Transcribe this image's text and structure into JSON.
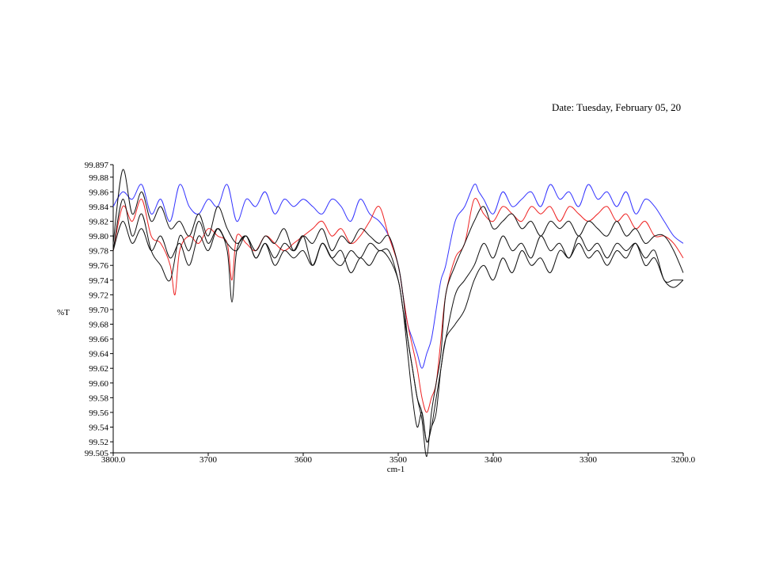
{
  "header": {
    "date_text": "Date: Tuesday, February 05, 20"
  },
  "chart_data": {
    "type": "line",
    "xlabel": "cm-1",
    "ylabel": "%T",
    "xlim": [
      3800.0,
      3200.0
    ],
    "ylim": [
      99.505,
      99.897
    ],
    "x_ticks": [
      3800.0,
      3700,
      3600,
      3500,
      3400,
      3300,
      3200.0
    ],
    "x_tick_labels": [
      "3800.0",
      "3700",
      "3600",
      "3500",
      "3400",
      "3300",
      "3200.0"
    ],
    "y_ticks": [
      99.505,
      99.52,
      99.54,
      99.56,
      99.58,
      99.6,
      99.62,
      99.64,
      99.66,
      99.68,
      99.7,
      99.72,
      99.74,
      99.76,
      99.78,
      99.8,
      99.82,
      99.84,
      99.86,
      99.88,
      99.897
    ],
    "y_tick_labels": [
      "99.505",
      "99.52",
      "99.54",
      "99.56",
      "99.58",
      "99.60",
      "99.62",
      "99.64",
      "99.66",
      "99.68",
      "99.70",
      "99.72",
      "99.74",
      "99.76",
      "99.78",
      "99.80",
      "99.82",
      "99.84",
      "99.86",
      "99.88",
      "99.897"
    ],
    "grid": false,
    "series": [
      {
        "color": "#3333ff",
        "x": [
          3800,
          3790,
          3780,
          3770,
          3760,
          3750,
          3740,
          3730,
          3720,
          3710,
          3700,
          3690,
          3680,
          3670,
          3660,
          3650,
          3640,
          3630,
          3620,
          3610,
          3600,
          3590,
          3580,
          3570,
          3560,
          3550,
          3540,
          3530,
          3520,
          3510,
          3500,
          3495,
          3490,
          3485,
          3480,
          3475,
          3470,
          3465,
          3460,
          3455,
          3450,
          3440,
          3430,
          3420,
          3415,
          3410,
          3400,
          3390,
          3380,
          3370,
          3360,
          3350,
          3340,
          3330,
          3320,
          3310,
          3300,
          3290,
          3280,
          3270,
          3260,
          3250,
          3240,
          3230,
          3220,
          3210,
          3200
        ],
        "y": [
          99.84,
          99.86,
          99.85,
          99.87,
          99.83,
          99.85,
          99.82,
          99.87,
          99.84,
          99.83,
          99.85,
          99.84,
          99.87,
          99.82,
          99.85,
          99.84,
          99.86,
          99.83,
          99.85,
          99.84,
          99.85,
          99.84,
          99.83,
          99.85,
          99.84,
          99.82,
          99.85,
          99.83,
          99.82,
          99.8,
          99.76,
          99.72,
          99.68,
          99.66,
          99.64,
          99.62,
          99.64,
          99.66,
          99.7,
          99.74,
          99.76,
          99.82,
          99.84,
          99.87,
          99.86,
          99.85,
          99.83,
          99.86,
          99.84,
          99.85,
          99.86,
          99.84,
          99.87,
          99.85,
          99.86,
          99.84,
          99.87,
          99.85,
          99.86,
          99.84,
          99.86,
          99.83,
          99.85,
          99.84,
          99.82,
          99.8,
          99.79
        ]
      },
      {
        "color": "#ee2222",
        "x": [
          3800,
          3790,
          3780,
          3770,
          3760,
          3750,
          3740,
          3735,
          3730,
          3720,
          3710,
          3700,
          3690,
          3680,
          3675,
          3670,
          3660,
          3650,
          3640,
          3630,
          3620,
          3610,
          3600,
          3590,
          3580,
          3570,
          3560,
          3550,
          3540,
          3530,
          3520,
          3510,
          3500,
          3495,
          3490,
          3485,
          3480,
          3475,
          3470,
          3465,
          3460,
          3455,
          3450,
          3440,
          3430,
          3420,
          3410,
          3400,
          3390,
          3380,
          3370,
          3360,
          3350,
          3340,
          3330,
          3320,
          3310,
          3300,
          3290,
          3280,
          3270,
          3260,
          3250,
          3240,
          3230,
          3220,
          3210,
          3200
        ],
        "y": [
          99.78,
          99.84,
          99.82,
          99.85,
          99.8,
          99.79,
          99.76,
          99.72,
          99.78,
          99.8,
          99.79,
          99.81,
          99.8,
          99.79,
          99.74,
          99.8,
          99.79,
          99.78,
          99.8,
          99.79,
          99.78,
          99.79,
          99.8,
          99.81,
          99.82,
          99.8,
          99.81,
          99.79,
          99.8,
          99.82,
          99.84,
          99.8,
          99.76,
          99.72,
          99.68,
          99.65,
          99.62,
          99.58,
          99.56,
          99.58,
          99.6,
          99.66,
          99.72,
          99.77,
          99.79,
          99.85,
          99.83,
          99.82,
          99.84,
          99.83,
          99.82,
          99.84,
          99.83,
          99.84,
          99.82,
          99.84,
          99.83,
          99.82,
          99.83,
          99.84,
          99.82,
          99.83,
          99.81,
          99.82,
          99.8,
          99.8,
          99.79,
          99.77
        ]
      },
      {
        "color": "#111111",
        "x": [
          3800,
          3790,
          3780,
          3770,
          3760,
          3750,
          3740,
          3730,
          3720,
          3710,
          3700,
          3690,
          3680,
          3670,
          3660,
          3650,
          3640,
          3630,
          3620,
          3610,
          3600,
          3590,
          3580,
          3570,
          3560,
          3550,
          3540,
          3530,
          3520,
          3510,
          3500,
          3495,
          3490,
          3485,
          3480,
          3475,
          3470,
          3465,
          3460,
          3455,
          3450,
          3440,
          3430,
          3420,
          3410,
          3400,
          3390,
          3380,
          3370,
          3360,
          3350,
          3340,
          3330,
          3320,
          3310,
          3300,
          3290,
          3280,
          3270,
          3260,
          3250,
          3240,
          3230,
          3220,
          3210,
          3200
        ],
        "y": [
          99.79,
          99.89,
          99.83,
          99.86,
          99.82,
          99.84,
          99.81,
          99.82,
          99.8,
          99.83,
          99.8,
          99.84,
          99.81,
          99.79,
          99.8,
          99.78,
          99.8,
          99.79,
          99.81,
          99.78,
          99.8,
          99.79,
          99.81,
          99.78,
          99.8,
          99.79,
          99.81,
          99.8,
          99.79,
          99.8,
          99.76,
          99.72,
          99.66,
          99.62,
          99.58,
          99.55,
          99.5,
          99.56,
          99.6,
          99.64,
          99.72,
          99.76,
          99.79,
          99.82,
          99.84,
          99.81,
          99.82,
          99.83,
          99.81,
          99.82,
          99.8,
          99.82,
          99.81,
          99.82,
          99.8,
          99.82,
          99.81,
          99.8,
          99.82,
          99.8,
          99.81,
          99.79,
          99.8,
          99.8,
          99.78,
          99.75
        ]
      },
      {
        "color": "#111111",
        "x": [
          3800,
          3790,
          3780,
          3770,
          3760,
          3750,
          3740,
          3730,
          3720,
          3710,
          3700,
          3690,
          3680,
          3675,
          3670,
          3660,
          3650,
          3640,
          3630,
          3620,
          3610,
          3600,
          3590,
          3580,
          3570,
          3560,
          3550,
          3540,
          3530,
          3520,
          3510,
          3500,
          3495,
          3490,
          3485,
          3480,
          3475,
          3470,
          3465,
          3460,
          3455,
          3450,
          3440,
          3430,
          3420,
          3410,
          3400,
          3390,
          3380,
          3370,
          3360,
          3350,
          3340,
          3330,
          3320,
          3310,
          3300,
          3290,
          3280,
          3270,
          3260,
          3250,
          3240,
          3230,
          3220,
          3210,
          3200
        ],
        "y": [
          99.78,
          99.85,
          99.8,
          99.83,
          99.78,
          99.76,
          99.74,
          99.8,
          99.78,
          99.82,
          99.79,
          99.81,
          99.78,
          99.71,
          99.78,
          99.8,
          99.77,
          99.79,
          99.77,
          99.79,
          99.78,
          99.8,
          99.76,
          99.79,
          99.77,
          99.76,
          99.78,
          99.77,
          99.79,
          99.78,
          99.78,
          99.74,
          99.7,
          99.64,
          99.58,
          99.54,
          99.56,
          99.52,
          99.54,
          99.56,
          99.62,
          99.66,
          99.72,
          99.74,
          99.76,
          99.79,
          99.77,
          99.8,
          99.78,
          99.79,
          99.77,
          99.8,
          99.78,
          99.79,
          99.77,
          99.8,
          99.78,
          99.79,
          99.77,
          99.79,
          99.78,
          99.79,
          99.77,
          99.78,
          99.74,
          99.74,
          99.74
        ]
      },
      {
        "color": "#111111",
        "x": [
          3800,
          3790,
          3780,
          3770,
          3760,
          3750,
          3740,
          3730,
          3720,
          3710,
          3700,
          3690,
          3680,
          3670,
          3660,
          3650,
          3640,
          3630,
          3620,
          3610,
          3600,
          3590,
          3580,
          3570,
          3560,
          3550,
          3540,
          3530,
          3520,
          3510,
          3500,
          3495,
          3490,
          3485,
          3480,
          3475,
          3470,
          3465,
          3460,
          3455,
          3450,
          3440,
          3430,
          3420,
          3410,
          3400,
          3390,
          3380,
          3370,
          3360,
          3350,
          3340,
          3330,
          3320,
          3310,
          3300,
          3290,
          3280,
          3270,
          3260,
          3250,
          3240,
          3230,
          3220,
          3210,
          3200
        ],
        "y": [
          99.78,
          99.82,
          99.79,
          99.81,
          99.78,
          99.8,
          99.77,
          99.79,
          99.76,
          99.8,
          99.78,
          99.81,
          99.79,
          99.78,
          99.8,
          99.77,
          99.79,
          99.76,
          99.78,
          99.77,
          99.78,
          99.76,
          99.79,
          99.77,
          99.78,
          99.75,
          99.77,
          99.76,
          99.78,
          99.77,
          99.74,
          99.7,
          99.66,
          99.62,
          99.58,
          99.56,
          99.52,
          99.54,
          99.58,
          99.62,
          99.66,
          99.68,
          99.7,
          99.74,
          99.76,
          99.74,
          99.77,
          99.75,
          99.78,
          99.76,
          99.77,
          99.75,
          99.78,
          99.77,
          99.79,
          99.77,
          99.78,
          99.76,
          99.78,
          99.77,
          99.79,
          99.76,
          99.77,
          99.74,
          99.73,
          99.74
        ]
      }
    ]
  }
}
